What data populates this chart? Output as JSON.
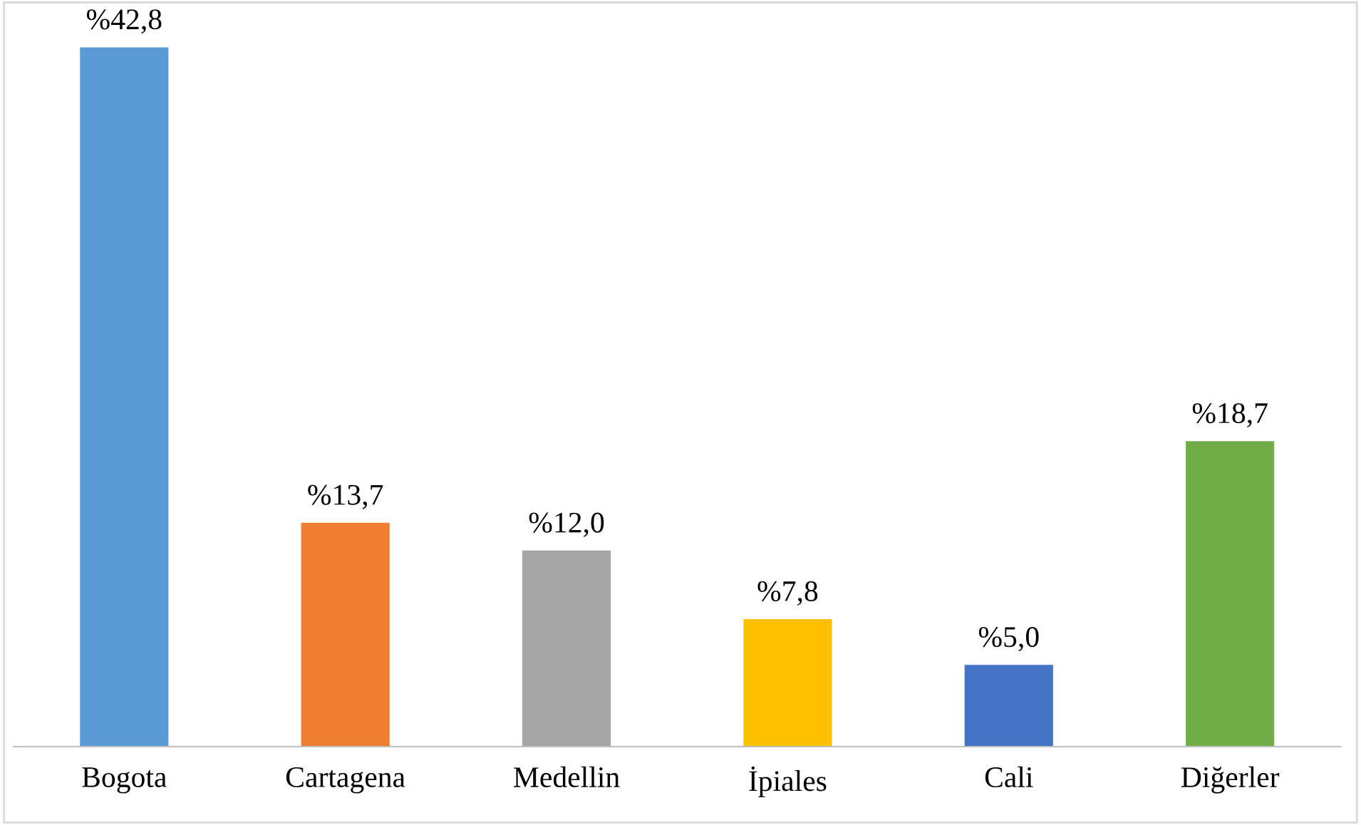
{
  "chart_data": {
    "type": "bar",
    "categories": [
      "Bogota",
      "Cartagena",
      "Medellin",
      "İpiales",
      "Cali",
      "Diğerler"
    ],
    "values": [
      42.8,
      13.7,
      12.0,
      7.8,
      5.0,
      18.7
    ],
    "colors": [
      "#5b9bd5",
      "#ed7d31",
      "#a5a5a5",
      "#ffc000",
      "#4472c4",
      "#70ad47"
    ],
    "value_labels": [
      "%42,8",
      "%13,7",
      "%12,0",
      "%7,8",
      "%5,0",
      "%18,7"
    ],
    "grid": false,
    "legend": false
  }
}
